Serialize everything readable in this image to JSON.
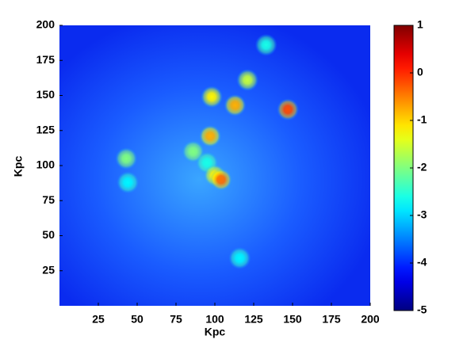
{
  "chart_data": {
    "type": "heatmap",
    "x_label": "Kpc",
    "y_label": "Kpc",
    "xlim": [
      0,
      200
    ],
    "xticks": [
      25,
      50,
      75,
      100,
      125,
      150,
      175,
      200
    ],
    "ylim": [
      0,
      200
    ],
    "yticks": [
      25,
      50,
      75,
      100,
      125,
      150,
      175,
      200
    ],
    "clim": [
      -5,
      1
    ],
    "cticks": [
      1,
      0,
      -1,
      -2,
      -3,
      -4,
      -5
    ],
    "colormap": "jet",
    "x": [
      133,
      121,
      98,
      113,
      147,
      97,
      86,
      95,
      100,
      104,
      43,
      44,
      116
    ],
    "y": [
      186,
      161,
      149,
      143,
      140,
      121,
      110,
      102,
      93,
      90,
      105,
      88,
      34
    ],
    "values": [
      -2.6,
      -1.6,
      -1.2,
      -0.8,
      -0.2,
      -0.8,
      -2,
      -2.6,
      -1.2,
      -0.4,
      -2,
      -2.8,
      -2.8
    ]
  }
}
